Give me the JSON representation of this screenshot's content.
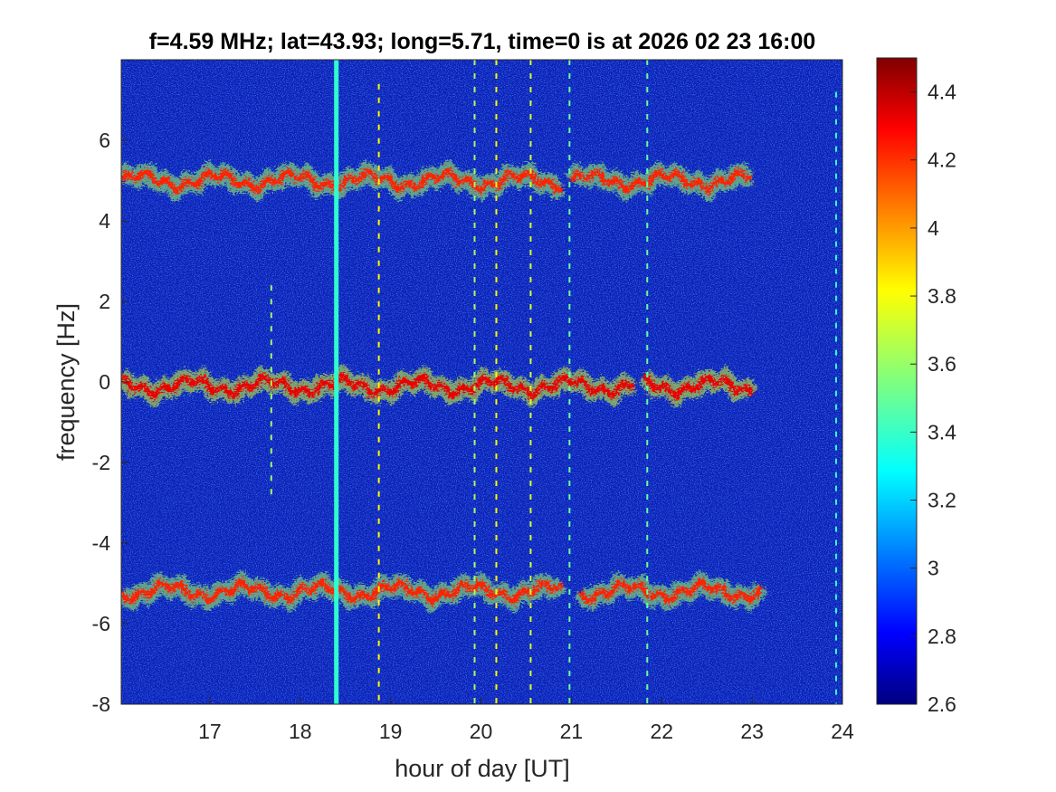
{
  "chart_data": {
    "type": "heatmap",
    "title": "f=4.59 MHz;  lat=43.93; long=5.71, time=0 is at 2026 02 23 16:00",
    "xlabel": "hour of day [UT]",
    "ylabel": "frequency [Hz]",
    "xlim": [
      16.02,
      24.0
    ],
    "ylim": [
      -8,
      8
    ],
    "x_ticks": [
      17,
      18,
      19,
      20,
      21,
      22,
      23,
      24
    ],
    "y_ticks": [
      -8,
      -6,
      -4,
      -2,
      0,
      2,
      4,
      6
    ],
    "x_tick_labels": [
      "17",
      "18",
      "19",
      "20",
      "21",
      "22",
      "23",
      "24"
    ],
    "y_tick_labels": [
      "-8",
      "-6",
      "-4",
      "-2",
      "0",
      "2",
      "4",
      "6"
    ],
    "colorbar": {
      "min": 2.6,
      "max": 4.5,
      "ticks": [
        2.6,
        2.8,
        3.0,
        3.2,
        3.4,
        3.6,
        3.8,
        4.0,
        4.2,
        4.4
      ],
      "tick_labels": [
        "2.6",
        "2.8",
        "3",
        "3.2",
        "3.4",
        "3.6",
        "3.8",
        "4",
        "4.2",
        "4.4"
      ],
      "colormap": "jet"
    },
    "grid": false,
    "bands": [
      {
        "center_hz": 5.0,
        "start_hour": 16.02,
        "end_hour": 23.0,
        "gap": [
          20.9,
          21.0
        ],
        "intensity": 4.2
      },
      {
        "center_hz": -0.1,
        "start_hour": 16.02,
        "end_hour": 23.0,
        "gap": [
          21.7,
          21.8
        ],
        "intensity": 4.3
      },
      {
        "center_hz": -5.2,
        "start_hour": 16.02,
        "end_hour": 23.1,
        "gap": [
          20.9,
          21.1
        ],
        "intensity": 4.2
      }
    ],
    "vertical_lines": [
      {
        "hour": 17.68,
        "from_hz": -2.8,
        "to_hz": 2.4,
        "intensity": 3.6
      },
      {
        "hour": 18.4,
        "from_hz": -8,
        "to_hz": 8,
        "intensity": 3.4
      },
      {
        "hour": 18.87,
        "from_hz": -8,
        "to_hz": 7.4,
        "intensity": 3.8
      },
      {
        "hour": 19.93,
        "from_hz": -8,
        "to_hz": 8,
        "intensity": 3.6
      },
      {
        "hour": 20.17,
        "from_hz": -8,
        "to_hz": 8,
        "intensity": 3.8
      },
      {
        "hour": 20.55,
        "from_hz": -8,
        "to_hz": 8,
        "intensity": 3.7
      },
      {
        "hour": 20.98,
        "from_hz": -8,
        "to_hz": 8,
        "intensity": 3.5
      },
      {
        "hour": 21.84,
        "from_hz": -8,
        "to_hz": 8,
        "intensity": 3.5
      },
      {
        "hour": 23.93,
        "from_hz": -8,
        "to_hz": 7.2,
        "intensity": 3.4
      }
    ]
  }
}
